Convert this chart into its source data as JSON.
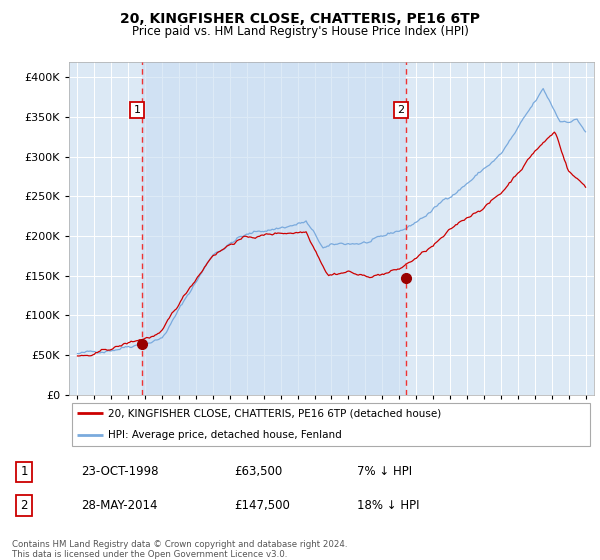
{
  "title": "20, KINGFISHER CLOSE, CHATTERIS, PE16 6TP",
  "subtitle": "Price paid vs. HM Land Registry's House Price Index (HPI)",
  "bg_color": "#dce9f5",
  "plot_bg_color": "#dce9f5",
  "hpi_color": "#7aaadd",
  "price_color": "#cc0000",
  "marker_color": "#990000",
  "vline_color": "#ee3333",
  "shade_color": "#c8ddf2",
  "marker1_x": 1998.81,
  "marker1_y": 63500,
  "marker2_x": 2014.4,
  "marker2_y": 147500,
  "label1": "1",
  "label2": "2",
  "legend_line1": "20, KINGFISHER CLOSE, CHATTERIS, PE16 6TP (detached house)",
  "legend_line2": "HPI: Average price, detached house, Fenland",
  "table_row1": [
    "1",
    "23-OCT-1998",
    "£63,500",
    "7% ↓ HPI"
  ],
  "table_row2": [
    "2",
    "28-MAY-2014",
    "£147,500",
    "18% ↓ HPI"
  ],
  "footer": "Contains HM Land Registry data © Crown copyright and database right 2024.\nThis data is licensed under the Open Government Licence v3.0.",
  "xlim": [
    1994.5,
    2025.5
  ],
  "ylim": [
    0,
    420000
  ],
  "yticks": [
    0,
    50000,
    100000,
    150000,
    200000,
    250000,
    300000,
    350000,
    400000
  ]
}
